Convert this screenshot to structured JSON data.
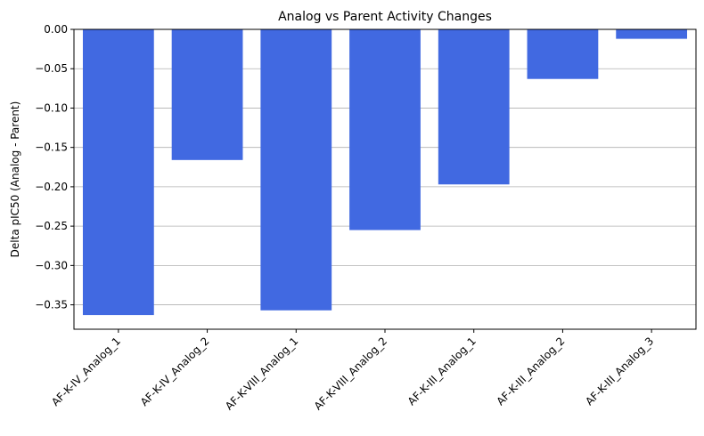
{
  "chart_data": {
    "type": "bar",
    "title": "Analog vs Parent Activity Changes",
    "xlabel": "",
    "ylabel": "Delta pIC50 (Analog - Parent)",
    "categories": [
      "AF-K-IV_Analog_1",
      "AF-K-IV_Analog_2",
      "AF-K-VIII_Analog_1",
      "AF-K-VIII_Analog_2",
      "AF-K-III_Analog_1",
      "AF-K-III_Analog_2",
      "AF-K-III_Analog_3"
    ],
    "values": [
      -0.363,
      -0.166,
      -0.357,
      -0.255,
      -0.197,
      -0.063,
      -0.012
    ],
    "ylim": [
      -0.381,
      0.0
    ],
    "yticks": [
      0.0,
      -0.05,
      -0.1,
      -0.15,
      -0.2,
      -0.25,
      -0.3,
      -0.35
    ],
    "ytick_labels": [
      "0.00",
      "−0.05",
      "−0.10",
      "−0.15",
      "−0.20",
      "−0.25",
      "−0.30",
      "−0.35"
    ],
    "grid": "y",
    "legend": "none",
    "bar_color": "#4169E1"
  }
}
